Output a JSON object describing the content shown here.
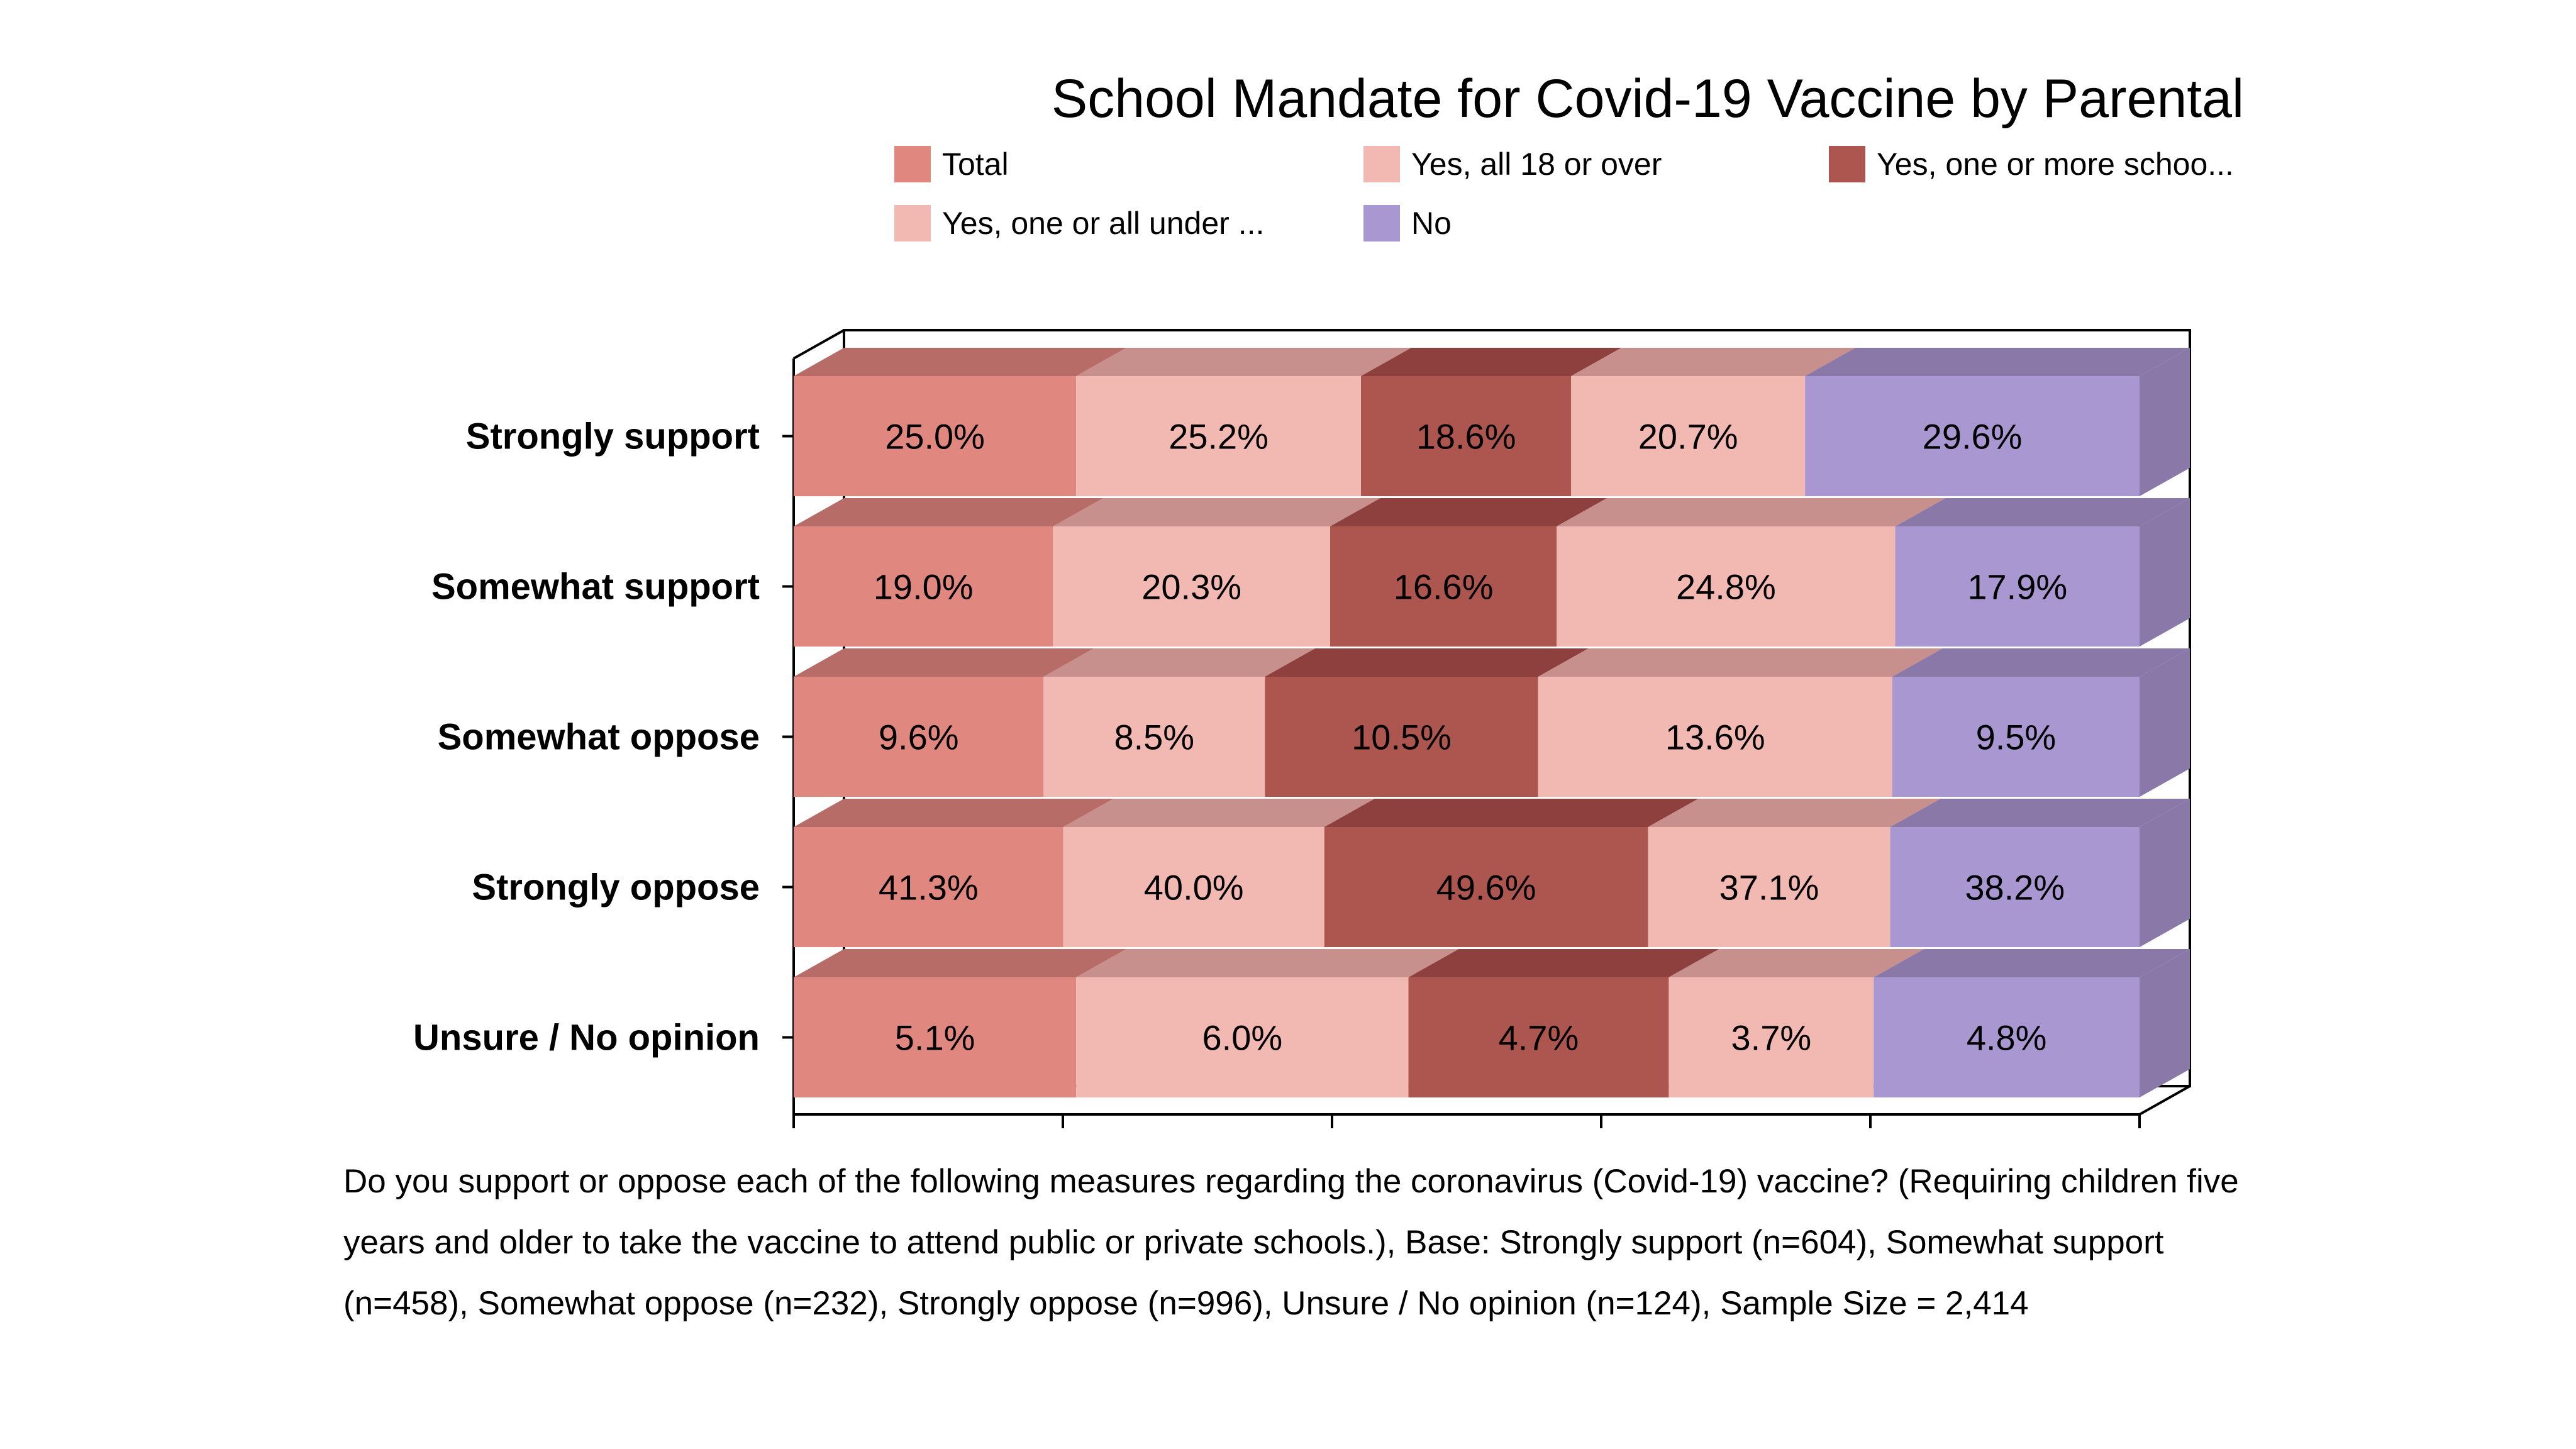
{
  "chart_data": {
    "type": "bar",
    "orientation": "horizontal",
    "stacked": true,
    "normalized_100pct": true,
    "style": "3d",
    "title": "School Mandate for Covid-19 Vaccine by Parental",
    "categories": [
      "Strongly support",
      "Somewhat support",
      "Somewhat oppose",
      "Strongly oppose",
      "Unsure / No opinion"
    ],
    "series": [
      {
        "name": "Total",
        "color": "#E08880",
        "top_color": "#B86C68",
        "values": [
          25.0,
          19.0,
          9.6,
          41.3,
          5.1
        ]
      },
      {
        "name": "Yes, all 18 or over",
        "color": "#F2B8B2",
        "top_color": "#C7908D",
        "values": [
          25.2,
          20.3,
          8.5,
          40.0,
          6.0
        ]
      },
      {
        "name": "Yes, one or more schoo...",
        "color": "#AD554F",
        "top_color": "#8D403D",
        "values": [
          18.6,
          16.6,
          10.5,
          49.6,
          4.7
        ]
      },
      {
        "name": "Yes, one or all under ...",
        "color": "#F2B8B2",
        "top_color": "#C7908D",
        "values": [
          20.7,
          24.8,
          13.6,
          37.1,
          3.7
        ]
      },
      {
        "name": "No",
        "color": "#A997D2",
        "top_color": "#8A78A8",
        "values": [
          29.6,
          17.9,
          9.5,
          38.2,
          4.8
        ]
      }
    ],
    "data_labels": [
      [
        "25.0%",
        "25.2%",
        "18.6%",
        "20.7%",
        "29.6%"
      ],
      [
        "19.0%",
        "20.3%",
        "16.6%",
        "24.8%",
        "17.9%"
      ],
      [
        "9.6%",
        "8.5%",
        "10.5%",
        "13.6%",
        "9.5%"
      ],
      [
        "41.3%",
        "40.0%",
        "49.6%",
        "37.1%",
        "38.2%"
      ],
      [
        "5.1%",
        "6.0%",
        "4.7%",
        "3.7%",
        "4.8%"
      ]
    ],
    "legend_position": "top",
    "xlabel": "",
    "ylabel": ""
  },
  "legend": {
    "items": [
      {
        "label": "Total",
        "color": "#E08880"
      },
      {
        "label": "Yes, all 18 or over",
        "color": "#F2B8B2"
      },
      {
        "label": "Yes, one or more schoo...",
        "color": "#AD554F"
      },
      {
        "label": "Yes, one or all under ...",
        "color": "#F2B8B2"
      },
      {
        "label": "No",
        "color": "#A997D2"
      }
    ]
  },
  "footnote": "Do you support or oppose each of the following measures regarding the coronavirus (Covid-19) vaccine? (Requiring children five years and older to take the vaccine to attend public or private schools.), Base: Strongly support (n=604), Somewhat support (n=458), Somewhat oppose (n=232), Strongly oppose (n=996), Unsure / No opinion (n=124), Sample Size = 2,414"
}
